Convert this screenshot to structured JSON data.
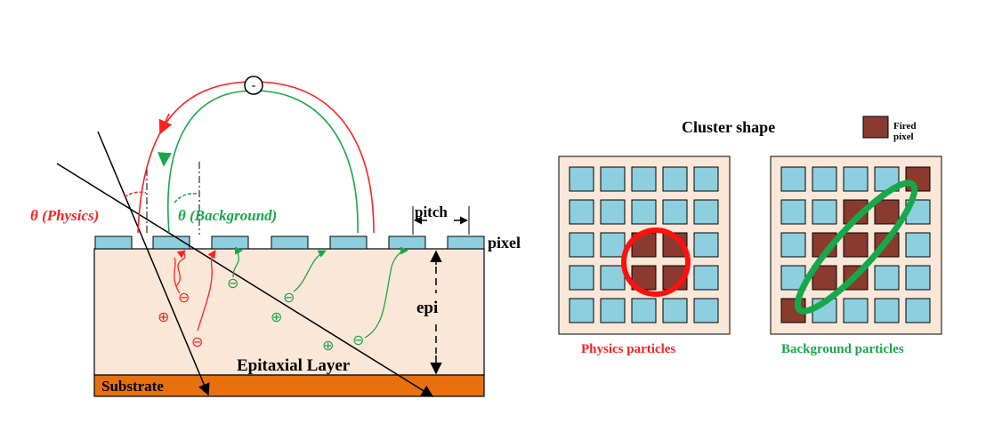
{
  "labels": {
    "theta_physics": "θ (Physics)",
    "theta_background": "θ (Background)",
    "pitch": "pitch",
    "pixel": "pixel",
    "epi": "epi",
    "epitaxial_layer": "Epitaxial Layer",
    "substrate": "Substrate",
    "cluster_shape": "Cluster shape",
    "fired_pixel_line1": "Fired",
    "fired_pixel_line2": "pixel",
    "physics_particles": "Physics particles",
    "background_particles": "Background particles",
    "electron_symbol": "⊖",
    "hole_symbol": "⊕",
    "free_electron": "-"
  },
  "grids": {
    "rows": 5,
    "cols": 5,
    "physics_fired": [
      [
        2,
        2
      ],
      [
        2,
        3
      ],
      [
        3,
        2
      ],
      [
        3,
        3
      ]
    ],
    "background_fired": [
      [
        0,
        4
      ],
      [
        1,
        3
      ],
      [
        1,
        2
      ],
      [
        2,
        3
      ],
      [
        2,
        2
      ],
      [
        2,
        1
      ],
      [
        3,
        2
      ],
      [
        3,
        1
      ],
      [
        4,
        0
      ]
    ]
  },
  "colors": {
    "physics": "#ff2020",
    "background": "#18a848",
    "epi_fill": "#fbe7d8",
    "substrate_fill": "#e8700e",
    "pixel_fill": "#8dcfdf",
    "fired_fill": "#8a3a2e",
    "grid_bg": "#fbe7d8"
  }
}
